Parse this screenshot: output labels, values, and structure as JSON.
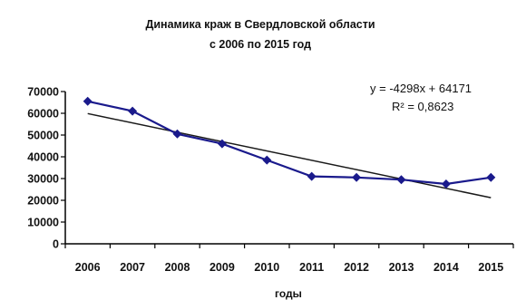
{
  "chart_data": {
    "type": "line",
    "title_lines": [
      "Динамика краж в Свердловской области",
      "с 2006 по 2015 год"
    ],
    "xlabel": "годы",
    "ylabel": "",
    "categories": [
      "2006",
      "2007",
      "2008",
      "2009",
      "2010",
      "2011",
      "2012",
      "2013",
      "2014",
      "2015"
    ],
    "y_ticks": [
      "0",
      "10000",
      "20000",
      "30000",
      "40000",
      "50000",
      "60000",
      "70000"
    ],
    "ylim": [
      0,
      70000
    ],
    "series": [
      {
        "values": [
          65500,
          61000,
          50500,
          46000,
          38500,
          31000,
          30500,
          29500,
          27500,
          30500
        ]
      }
    ],
    "trendline": {
      "type": "linear",
      "slope": -4298,
      "intercept": 64171,
      "equation_label": "y = -4298x + 64171",
      "r2_label": "R² = 0,8623"
    },
    "grid": false,
    "legend": "none",
    "colors": {
      "series": "#1a1a8c",
      "trendline": "#1a1a1a",
      "axis": "#000000"
    }
  }
}
